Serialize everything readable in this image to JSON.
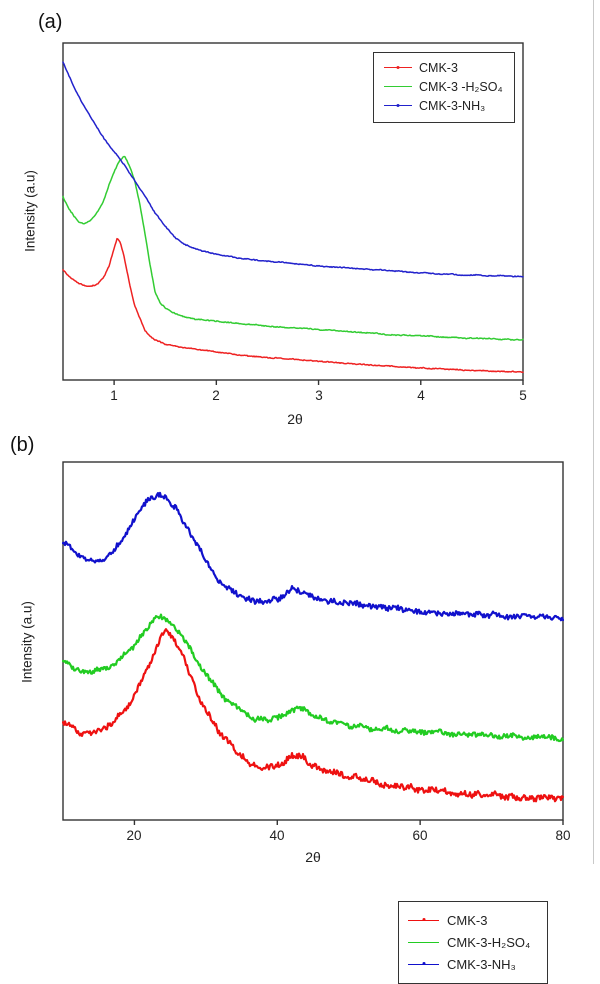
{
  "figure": {
    "background": "#ffffff",
    "frame_color": "#333333",
    "text_color": "#222222"
  },
  "chart_data": [
    {
      "type": "line",
      "panel_label": "(a)",
      "title": "",
      "xlabel": "2θ",
      "ylabel": "Intensity (a.u)",
      "xlim": [
        0.5,
        5
      ],
      "ylim": [
        0,
        100
      ],
      "x_ticks": [
        1,
        2,
        3,
        4,
        5
      ],
      "y_ticks": [],
      "grid": false,
      "legend_position": "top-right",
      "frame_color": "#333333",
      "series": [
        {
          "name": "CMK-3",
          "color": "#ee2222",
          "legend_marker": true,
          "noise": 0.55,
          "x": [
            0.5,
            0.55,
            0.6,
            0.65,
            0.7,
            0.75,
            0.8,
            0.85,
            0.9,
            0.95,
            1.0,
            1.03,
            1.06,
            1.1,
            1.15,
            1.2,
            1.25,
            1.3,
            1.35,
            1.4,
            1.5,
            1.6,
            1.8,
            2.0,
            2.3,
            2.6,
            3.0,
            3.4,
            3.8,
            4.2,
            4.6,
            5.0
          ],
          "y": [
            32.6,
            30.9,
            29.7,
            28.8,
            28.2,
            27.9,
            27.9,
            28.8,
            30.6,
            33.8,
            39.2,
            42.1,
            40.9,
            36.2,
            28.8,
            22.3,
            18.4,
            14.8,
            13.1,
            11.9,
            10.7,
            10.1,
            9.2,
            8.3,
            7.1,
            6.5,
            5.6,
            4.7,
            3.9,
            3.3,
            2.7,
            2.4
          ]
        },
        {
          "name": "CMK-3 -H₂SO₄",
          "color": "#33cc33",
          "legend_marker": false,
          "noise": 0.55,
          "x": [
            0.5,
            0.55,
            0.6,
            0.65,
            0.7,
            0.75,
            0.8,
            0.85,
            0.9,
            0.95,
            1.0,
            1.05,
            1.1,
            1.15,
            1.2,
            1.25,
            1.3,
            1.35,
            1.4,
            1.45,
            1.5,
            1.6,
            1.7,
            1.8,
            2.0,
            2.2,
            2.5,
            2.8,
            3.1,
            3.4,
            3.7,
            4.0,
            4.4,
            4.7,
            5.0
          ],
          "y": [
            54.3,
            51.3,
            49.0,
            46.9,
            46.3,
            46.9,
            48.4,
            50.4,
            53.4,
            57.9,
            61.7,
            65.0,
            66.5,
            63.5,
            59.3,
            52.5,
            43.9,
            34.4,
            26.1,
            22.8,
            21.4,
            19.6,
            18.7,
            18.1,
            17.5,
            16.9,
            16.0,
            15.4,
            14.8,
            14.2,
            13.4,
            13.1,
            12.5,
            12.2,
            11.9
          ]
        },
        {
          "name": "CMK-3-NH₃",
          "color": "#2222cc",
          "legend_marker": true,
          "noise": 0.55,
          "x": [
            0.5,
            0.6,
            0.7,
            0.8,
            0.9,
            1.0,
            1.1,
            1.2,
            1.3,
            1.4,
            1.5,
            1.6,
            1.7,
            1.8,
            1.9,
            2.0,
            2.2,
            2.4,
            2.6,
            2.8,
            3.0,
            3.3,
            3.6,
            4.0,
            4.4,
            4.8,
            5.0
          ],
          "y": [
            94.4,
            87.5,
            81.6,
            76.6,
            71.8,
            67.7,
            63.8,
            59.1,
            54.6,
            49.6,
            45.7,
            42.1,
            40.1,
            38.9,
            38.0,
            37.4,
            36.2,
            35.6,
            35.0,
            34.4,
            33.8,
            33.2,
            32.6,
            31.8,
            31.2,
            30.9,
            30.6
          ]
        }
      ]
    },
    {
      "type": "line",
      "panel_label": "(b)",
      "title": "",
      "xlabel": "2θ",
      "ylabel": "Intensity (a.u)",
      "xlim": [
        10,
        80
      ],
      "ylim": [
        0,
        100
      ],
      "x_ticks": [
        20,
        40,
        60,
        80
      ],
      "y_ticks": [],
      "grid": false,
      "legend_position": "top-right",
      "frame_color": "#333333",
      "series": [
        {
          "name": "CMK-3",
          "color": "#ee1111",
          "legend_marker": true,
          "noise": 3.4,
          "x": [
            10,
            11,
            12,
            13,
            14,
            15,
            16,
            17,
            18,
            19,
            20,
            21,
            22,
            23,
            24,
            24.5,
            25,
            26,
            27,
            28,
            29,
            30,
            31,
            32,
            33,
            34,
            35,
            36,
            37,
            38,
            39,
            40,
            41,
            42,
            43,
            44,
            45,
            46,
            48,
            50,
            53,
            56,
            60,
            64,
            68,
            72,
            76,
            80
          ],
          "y": [
            27.1,
            26.0,
            25.1,
            24.6,
            24.6,
            25.1,
            26.0,
            27.4,
            29.3,
            31.8,
            35.2,
            38.8,
            43.3,
            47.5,
            52.0,
            53.6,
            52.2,
            48.9,
            44.4,
            39.7,
            34.6,
            30.7,
            27.4,
            24.3,
            21.8,
            19.6,
            17.6,
            16.2,
            15.4,
            14.8,
            14.5,
            15.1,
            16.2,
            17.6,
            18.2,
            17.0,
            15.6,
            14.5,
            13.4,
            12.3,
            10.9,
            9.8,
            8.7,
            7.8,
            7.3,
            6.7,
            6.4,
            6.4
          ]
        },
        {
          "name": "CMK-3-H₂SO₄",
          "color": "#22cc22",
          "legend_marker": false,
          "noise": 2.7,
          "x": [
            10,
            11,
            12,
            13,
            14,
            15,
            16,
            17,
            18,
            19,
            20,
            21,
            22,
            23,
            23.5,
            24,
            25,
            26,
            27,
            28,
            29,
            30,
            31,
            32,
            33,
            34,
            35,
            36,
            37,
            38,
            39,
            40,
            41,
            42,
            43,
            44,
            45,
            46,
            48,
            50,
            53,
            56,
            60,
            64,
            68,
            72,
            76,
            80
          ],
          "y": [
            44.1,
            43.0,
            42.2,
            41.6,
            41.6,
            41.9,
            42.5,
            43.3,
            44.7,
            46.6,
            48.9,
            51.4,
            54.2,
            56.4,
            57.5,
            57.0,
            55.6,
            53.4,
            50.6,
            47.5,
            44.1,
            41.1,
            38.3,
            35.8,
            33.5,
            31.8,
            30.4,
            29.3,
            28.5,
            27.9,
            27.7,
            28.2,
            29.3,
            30.7,
            31.6,
            30.7,
            29.3,
            28.5,
            27.4,
            26.5,
            25.7,
            25.1,
            24.6,
            24.0,
            23.7,
            23.5,
            23.2,
            22.9
          ]
        },
        {
          "name": "CMK-3-NH₃",
          "color": "#1111cc",
          "legend_marker": true,
          "noise": 2.9,
          "x": [
            10,
            11,
            12,
            13,
            14,
            15,
            16,
            17,
            18,
            19,
            20,
            21,
            22,
            23,
            23.5,
            24,
            25,
            26,
            27,
            28,
            29,
            30,
            31,
            32,
            33,
            34,
            35,
            36,
            37,
            38,
            39,
            40,
            41,
            42,
            42.5,
            43,
            44,
            45,
            46,
            48,
            50,
            53,
            56,
            60,
            64,
            68,
            72,
            76,
            80
          ],
          "y": [
            78.2,
            75.7,
            73.7,
            72.9,
            72.3,
            72.9,
            73.7,
            75.1,
            77.7,
            80.7,
            84.1,
            87.2,
            89.4,
            90.8,
            91.3,
            90.5,
            89.1,
            86.3,
            83.0,
            79.3,
            75.7,
            72.3,
            69.3,
            66.8,
            64.8,
            63.1,
            62.0,
            61.5,
            61.2,
            60.9,
            61.2,
            61.7,
            63.1,
            64.5,
            64.8,
            64.5,
            63.4,
            62.3,
            61.7,
            60.9,
            60.3,
            59.5,
            58.9,
            58.4,
            57.8,
            57.5,
            57.3,
            57.0,
            56.7
          ]
        }
      ]
    }
  ]
}
